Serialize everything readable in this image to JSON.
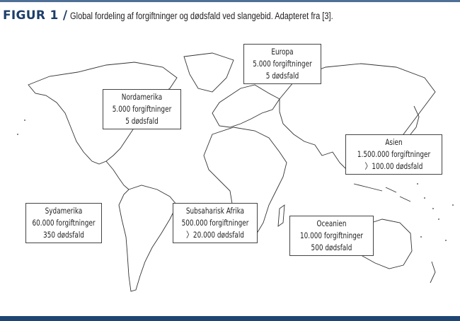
{
  "caption": {
    "figure_label": "FIGUR 1 /",
    "text": "Global fordeling af forgiftninger og dødsfald ved slangebid. Adapteret fra [3]."
  },
  "colors": {
    "accent": "#1d3e6a",
    "bar": "#1f4673"
  },
  "regions": [
    {
      "name": "Europa",
      "envenomings": "5.000 forgiftninger",
      "deaths": "5 dødsfald"
    },
    {
      "name": "Nordamerika",
      "envenomings": "5.000 forgiftninger",
      "deaths": "5 dødsfald"
    },
    {
      "name": "Asien",
      "envenomings": "1.500.000 forgiftninger",
      "deaths": "〉100.00 dødsfald"
    },
    {
      "name": "Sydamerika",
      "envenomings": "60.000 forgiftninger",
      "deaths": "350 dødsfald"
    },
    {
      "name": "Subsaharisk Afrika",
      "envenomings": "500.000 forgiftninger",
      "deaths": "〉20.000 dødsfald"
    },
    {
      "name": "Oceanien",
      "envenomings": "10.000 forgiftninger",
      "deaths": "500 dødsfald"
    }
  ]
}
